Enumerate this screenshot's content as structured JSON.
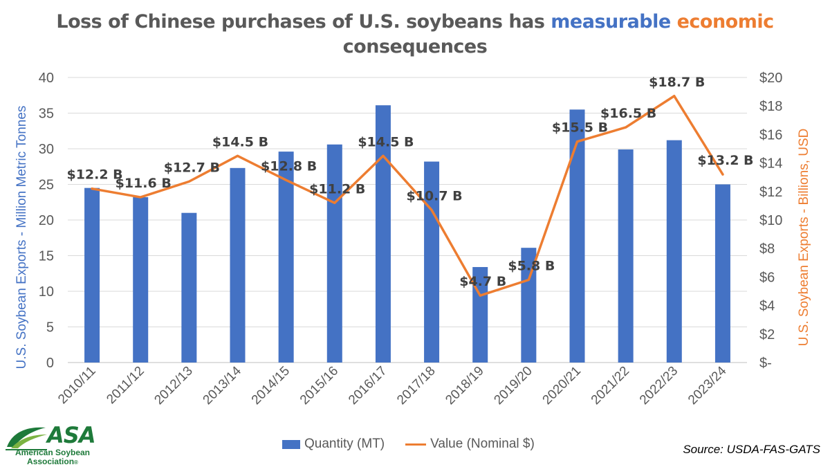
{
  "title": {
    "part1": "Loss of Chinese purchases of U.S. soybeans has ",
    "part2": "measurable",
    "part3": "economic",
    "line2": "consequences"
  },
  "colors": {
    "bar": "#4472c4",
    "line": "#ed7d31",
    "title": "#595959",
    "grid": "#d9d9d9",
    "logo": "#1e7a3a"
  },
  "chart_data": {
    "type": "bar",
    "categories": [
      "2010/11",
      "2011/12",
      "2012/13",
      "2013/14",
      "2014/15",
      "2015/16",
      "2016/17",
      "2017/18",
      "2018/19",
      "2019/20",
      "2020/21",
      "2021/22",
      "2022/23",
      "2023/24"
    ],
    "series": [
      {
        "name": "Quantity (MT)",
        "type": "bar",
        "axis": "left",
        "values": [
          24.5,
          23.2,
          21.0,
          27.3,
          29.6,
          30.6,
          36.1,
          28.2,
          13.4,
          16.1,
          35.5,
          29.9,
          31.2,
          25.0
        ]
      },
      {
        "name": "Value (Nominal $)",
        "type": "line",
        "axis": "right",
        "values": [
          12.2,
          11.6,
          12.7,
          14.5,
          12.8,
          11.2,
          14.5,
          10.7,
          4.7,
          5.8,
          15.5,
          16.5,
          18.7,
          13.2
        ],
        "labels": [
          "$12.2 B",
          "$11.6 B",
          "$12.7 B",
          "$14.5 B",
          "$12.8 B",
          "$11.2 B",
          "$14.5 B",
          "$10.7 B",
          "$4.7 B",
          "$5.8 B",
          "$15.5 B",
          "$16.5 B",
          "$18.7 B",
          "$13.2 B"
        ]
      }
    ],
    "y_left": {
      "label": "U.S. Soybean Exports - Million Metric Tonnes",
      "ylim": [
        0,
        40
      ],
      "ticks": [
        "0",
        "5",
        "10",
        "15",
        "20",
        "25",
        "30",
        "35",
        "40"
      ]
    },
    "y_right": {
      "label": "U.S. Soybean Exports - Billions, USD",
      "ylim": [
        0,
        20
      ],
      "ticks": [
        "$-",
        "$2",
        "$4",
        "$6",
        "$8",
        "$10",
        "$12",
        "$14",
        "$16",
        "$18",
        "$20"
      ]
    },
    "grid": true,
    "legend_position": "bottom"
  },
  "source": "Source: USDA-FAS-GATS",
  "logo": {
    "text": "ASA",
    "sub1": "American Soybean",
    "sub2": "Association",
    "mark": "®"
  }
}
